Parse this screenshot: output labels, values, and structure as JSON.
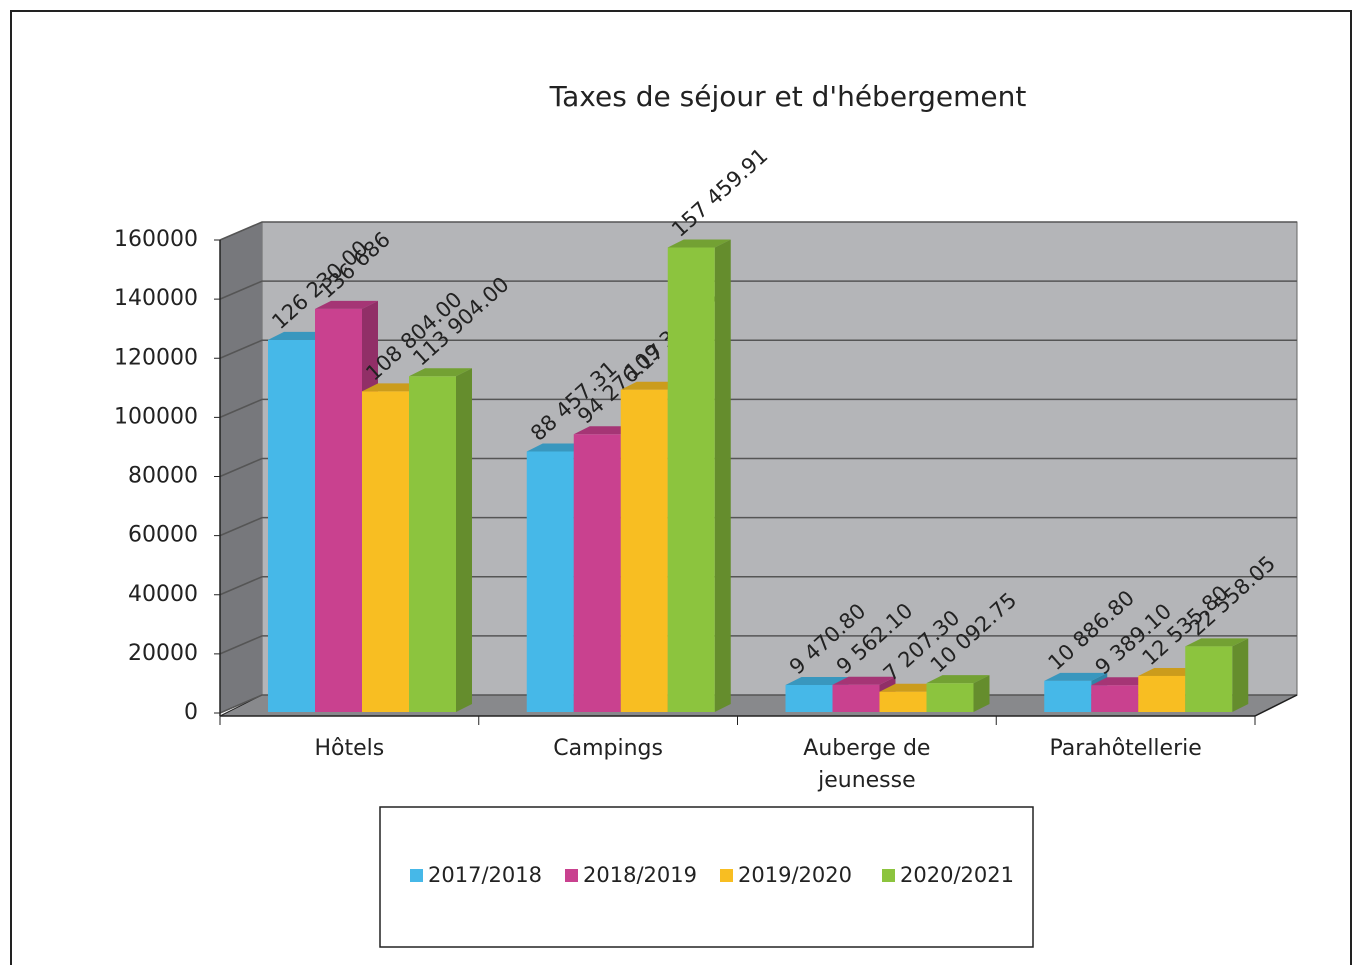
{
  "chart_data": {
    "type": "bar3d",
    "title": "Taxes de séjour et d'hébergement",
    "categories": [
      "Hôtels",
      "Campings",
      "Auberge de jeunesse",
      "Parahôtellerie"
    ],
    "series": [
      {
        "name": "2017/2018",
        "color": "#46b8e8",
        "values": [
          126230.0,
          88457.31,
          9470.8,
          10886.8
        ],
        "value_labels": [
          "126 230.00",
          "88 457.31",
          "9 470.80",
          "10 886.80"
        ]
      },
      {
        "name": "2018/2019",
        "color": "#c9418f",
        "values": [
          136686,
          94276.17,
          9562.1,
          9389.1
        ],
        "value_labels": [
          "136 686",
          "94 276.17",
          "9 562.10",
          "9 389.10"
        ]
      },
      {
        "name": "2019/2020",
        "color": "#f8be22",
        "values": [
          108804.0,
          109364.94,
          7207.3,
          12535.8
        ],
        "value_labels": [
          "108 804.00",
          "109 364.94",
          "7 207.30",
          "12 535.80"
        ]
      },
      {
        "name": "2020/2021",
        "color": "#8cc43e",
        "values": [
          113904.0,
          157459.91,
          10092.75,
          22558.05
        ],
        "value_labels": [
          "113 904.00",
          "157 459.91",
          "10 092.75",
          "22 558.05"
        ]
      }
    ],
    "ylim": [
      0,
      160000
    ],
    "yticks": [
      0,
      20000,
      40000,
      60000,
      80000,
      100000,
      120000,
      140000,
      160000
    ],
    "grid": true
  }
}
